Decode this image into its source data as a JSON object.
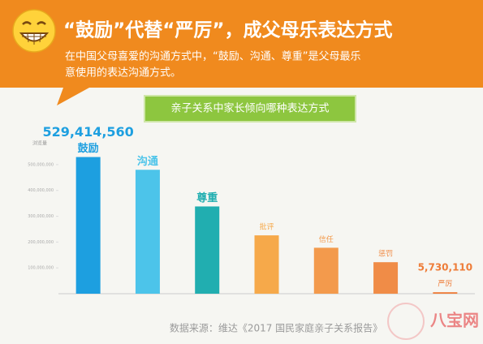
{
  "chart_data": {
    "type": "bar",
    "title": "“鼓励”代替“严厉”，成父母乐表达方式",
    "subtitle": [
      "在中国父母喜爱的沟通方式中，“鼓励、沟通、尊重”是父母最乐",
      "意使用的表达沟通方式。"
    ],
    "chart_heading": "亲子关系中家长倾向哪种表达方式",
    "ylabel": "浏览量",
    "categories": [
      "鼓励",
      "沟通",
      "尊重",
      "批评",
      "信任",
      "惩罚",
      "严厉"
    ],
    "values": [
      529414560,
      480000000,
      338000000,
      226000000,
      178000000,
      122000000,
      5730110
    ],
    "value_labels": [
      "529,414,560",
      null,
      null,
      null,
      null,
      null,
      "5,730,110"
    ],
    "colors": [
      "#1d9fe0",
      "#4cc4ea",
      "#21aeb0",
      "#f6a94a",
      "#f39a4c",
      "#f08c47",
      "#ee7c38"
    ],
    "ylim": [
      0,
      550000000
    ],
    "yticks": [
      {
        "value": 100000000,
        "label": "100,000,000"
      },
      {
        "value": 200000000,
        "label": "200,000,000"
      },
      {
        "value": 300000000,
        "label": "300,000,000"
      },
      {
        "value": 400000000,
        "label": "400,000,000"
      },
      {
        "value": 500000000,
        "label": "500,000,000"
      }
    ],
    "source": "数据来源：维达《2017 国民家庭亲子关系报告》"
  },
  "watermark": "八宝网"
}
